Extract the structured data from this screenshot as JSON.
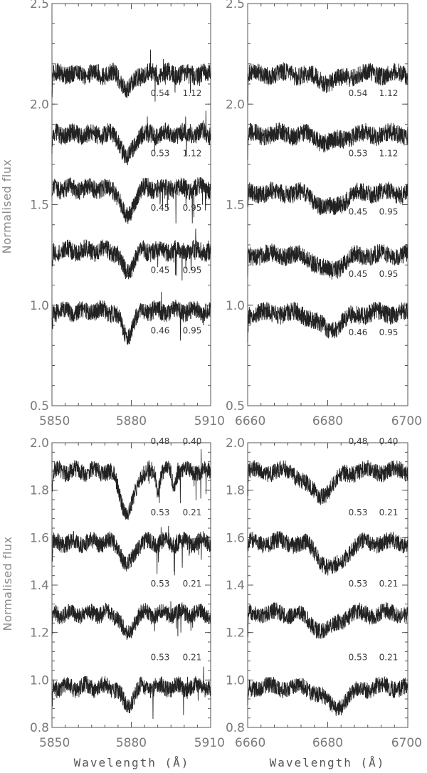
{
  "chart_data": [
    {
      "id": "top-left",
      "type": "line",
      "ylabel": "Normalised flux",
      "xlim": [
        5850,
        5910
      ],
      "ylim": [
        0.5,
        2.5
      ],
      "xticks": [
        "5850",
        "5880",
        "5910"
      ],
      "yticks": [
        "0.5",
        "1.0",
        "1.5",
        "2.0",
        "2.5"
      ],
      "series": [
        {
          "offset": 2.15,
          "annotations": [
            "0.54",
            "1.12"
          ],
          "features": [
            {
              "center": 5878.5,
              "depth": 0.08,
              "width": 2.0
            }
          ]
        },
        {
          "offset": 1.85,
          "annotations": [
            "0.53",
            "1.12"
          ],
          "features": [
            {
              "center": 5878.5,
              "depth": 0.12,
              "width": 2.0
            }
          ]
        },
        {
          "offset": 1.58,
          "annotations": [
            "0.45",
            "0.95"
          ],
          "features": [
            {
              "center": 5878.5,
              "depth": 0.14,
              "width": 2.2
            }
          ]
        },
        {
          "offset": 1.27,
          "annotations": [
            "0.45",
            "0.95"
          ],
          "features": [
            {
              "center": 5878.5,
              "depth": 0.11,
              "width": 2.0
            }
          ]
        },
        {
          "offset": 0.97,
          "annotations": [
            "0.46",
            "0.95"
          ],
          "features": [
            {
              "center": 5878.5,
              "depth": 0.12,
              "width": 2.2
            }
          ]
        }
      ]
    },
    {
      "id": "top-right",
      "type": "line",
      "xlim": [
        6660,
        6700
      ],
      "ylim": [
        0.5,
        2.5
      ],
      "xticks": [
        "6660",
        "6680",
        "6700"
      ],
      "yticks": [
        "0.5",
        "1.0",
        "1.5",
        "2.0",
        "2.5"
      ],
      "series": [
        {
          "offset": 2.15,
          "annotations": [
            "0.54",
            "1.12"
          ],
          "features": [
            {
              "center": 6680.5,
              "depth": 0.04,
              "width": 3.0
            }
          ]
        },
        {
          "offset": 1.85,
          "annotations": [
            "0.53",
            "1.12"
          ],
          "features": [
            {
              "center": 6680.5,
              "depth": 0.04,
              "width": 3.0
            }
          ]
        },
        {
          "offset": 1.56,
          "annotations": [
            "0.45",
            "0.95"
          ],
          "features": [
            {
              "center": 6680.5,
              "depth": 0.08,
              "width": 3.0
            }
          ]
        },
        {
          "offset": 1.25,
          "annotations": [
            "0.45",
            "0.95"
          ],
          "features": [
            {
              "center": 6680.5,
              "depth": 0.08,
              "width": 3.0
            }
          ]
        },
        {
          "offset": 0.96,
          "annotations": [
            "0.46",
            "0.95"
          ],
          "features": [
            {
              "center": 6680.5,
              "depth": 0.08,
              "width": 3.0
            }
          ]
        }
      ]
    },
    {
      "id": "bottom-left",
      "type": "line",
      "ylabel": "Normalised flux",
      "xlabel": "Wavelength (Å)",
      "xlim": [
        5850,
        5910
      ],
      "ylim": [
        0.8,
        2.0
      ],
      "xticks": [
        "5850",
        "5880",
        "5910"
      ],
      "yticks": [
        "0.8",
        "1.0",
        "1.2",
        "1.4",
        "1.6",
        "1.8",
        "2.0"
      ],
      "series": [
        {
          "offset": 1.88,
          "annotations": [
            "0.48",
            "0.40"
          ],
          "annotation_position": "above",
          "features": [
            {
              "center": 5878.5,
              "depth": 0.18,
              "width": 2.5
            },
            {
              "center": 5890,
              "depth": 0.08,
              "width": 0.6
            },
            {
              "center": 5896,
              "depth": 0.06,
              "width": 0.6
            }
          ]
        },
        {
          "offset": 1.58,
          "annotations": [
            "0.53",
            "0.21"
          ],
          "annotation_position": "above",
          "features": [
            {
              "center": 5878.5,
              "depth": 0.1,
              "width": 2.0
            }
          ]
        },
        {
          "offset": 1.28,
          "annotations": [
            "0.53",
            "0.21"
          ],
          "annotation_position": "above",
          "features": [
            {
              "center": 5878.5,
              "depth": 0.09,
              "width": 2.0
            }
          ]
        },
        {
          "offset": 0.97,
          "annotations": [
            "0.53",
            "0.21"
          ],
          "annotation_position": "above",
          "features": [
            {
              "center": 5878.5,
              "depth": 0.08,
              "width": 2.0
            }
          ]
        }
      ]
    },
    {
      "id": "bottom-right",
      "type": "line",
      "xlabel": "Wavelength (Å)",
      "xlim": [
        6660,
        6700
      ],
      "ylim": [
        0.8,
        2.0
      ],
      "xticks": [
        "6660",
        "6680",
        "6700"
      ],
      "yticks": [
        "0.8",
        "1.0",
        "1.2",
        "1.4",
        "1.6",
        "1.8",
        "2.0"
      ],
      "series": [
        {
          "offset": 1.88,
          "annotations": [
            "0.48",
            "0.40"
          ],
          "annotation_position": "above",
          "features": [
            {
              "center": 6678,
              "depth": 0.1,
              "width": 3.0
            }
          ]
        },
        {
          "offset": 1.58,
          "annotations": [
            "0.53",
            "0.21"
          ],
          "annotation_position": "above",
          "features": [
            {
              "center": 6681,
              "depth": 0.11,
              "width": 3.0
            }
          ]
        },
        {
          "offset": 1.28,
          "annotations": [
            "0.53",
            "0.21"
          ],
          "annotation_position": "above",
          "features": [
            {
              "center": 6679,
              "depth": 0.07,
              "width": 3.0
            }
          ]
        },
        {
          "offset": 0.97,
          "annotations": [
            "0.53",
            "0.21"
          ],
          "annotation_position": "above",
          "features": [
            {
              "center": 6682,
              "depth": 0.08,
              "width": 3.0
            }
          ]
        }
      ]
    }
  ]
}
